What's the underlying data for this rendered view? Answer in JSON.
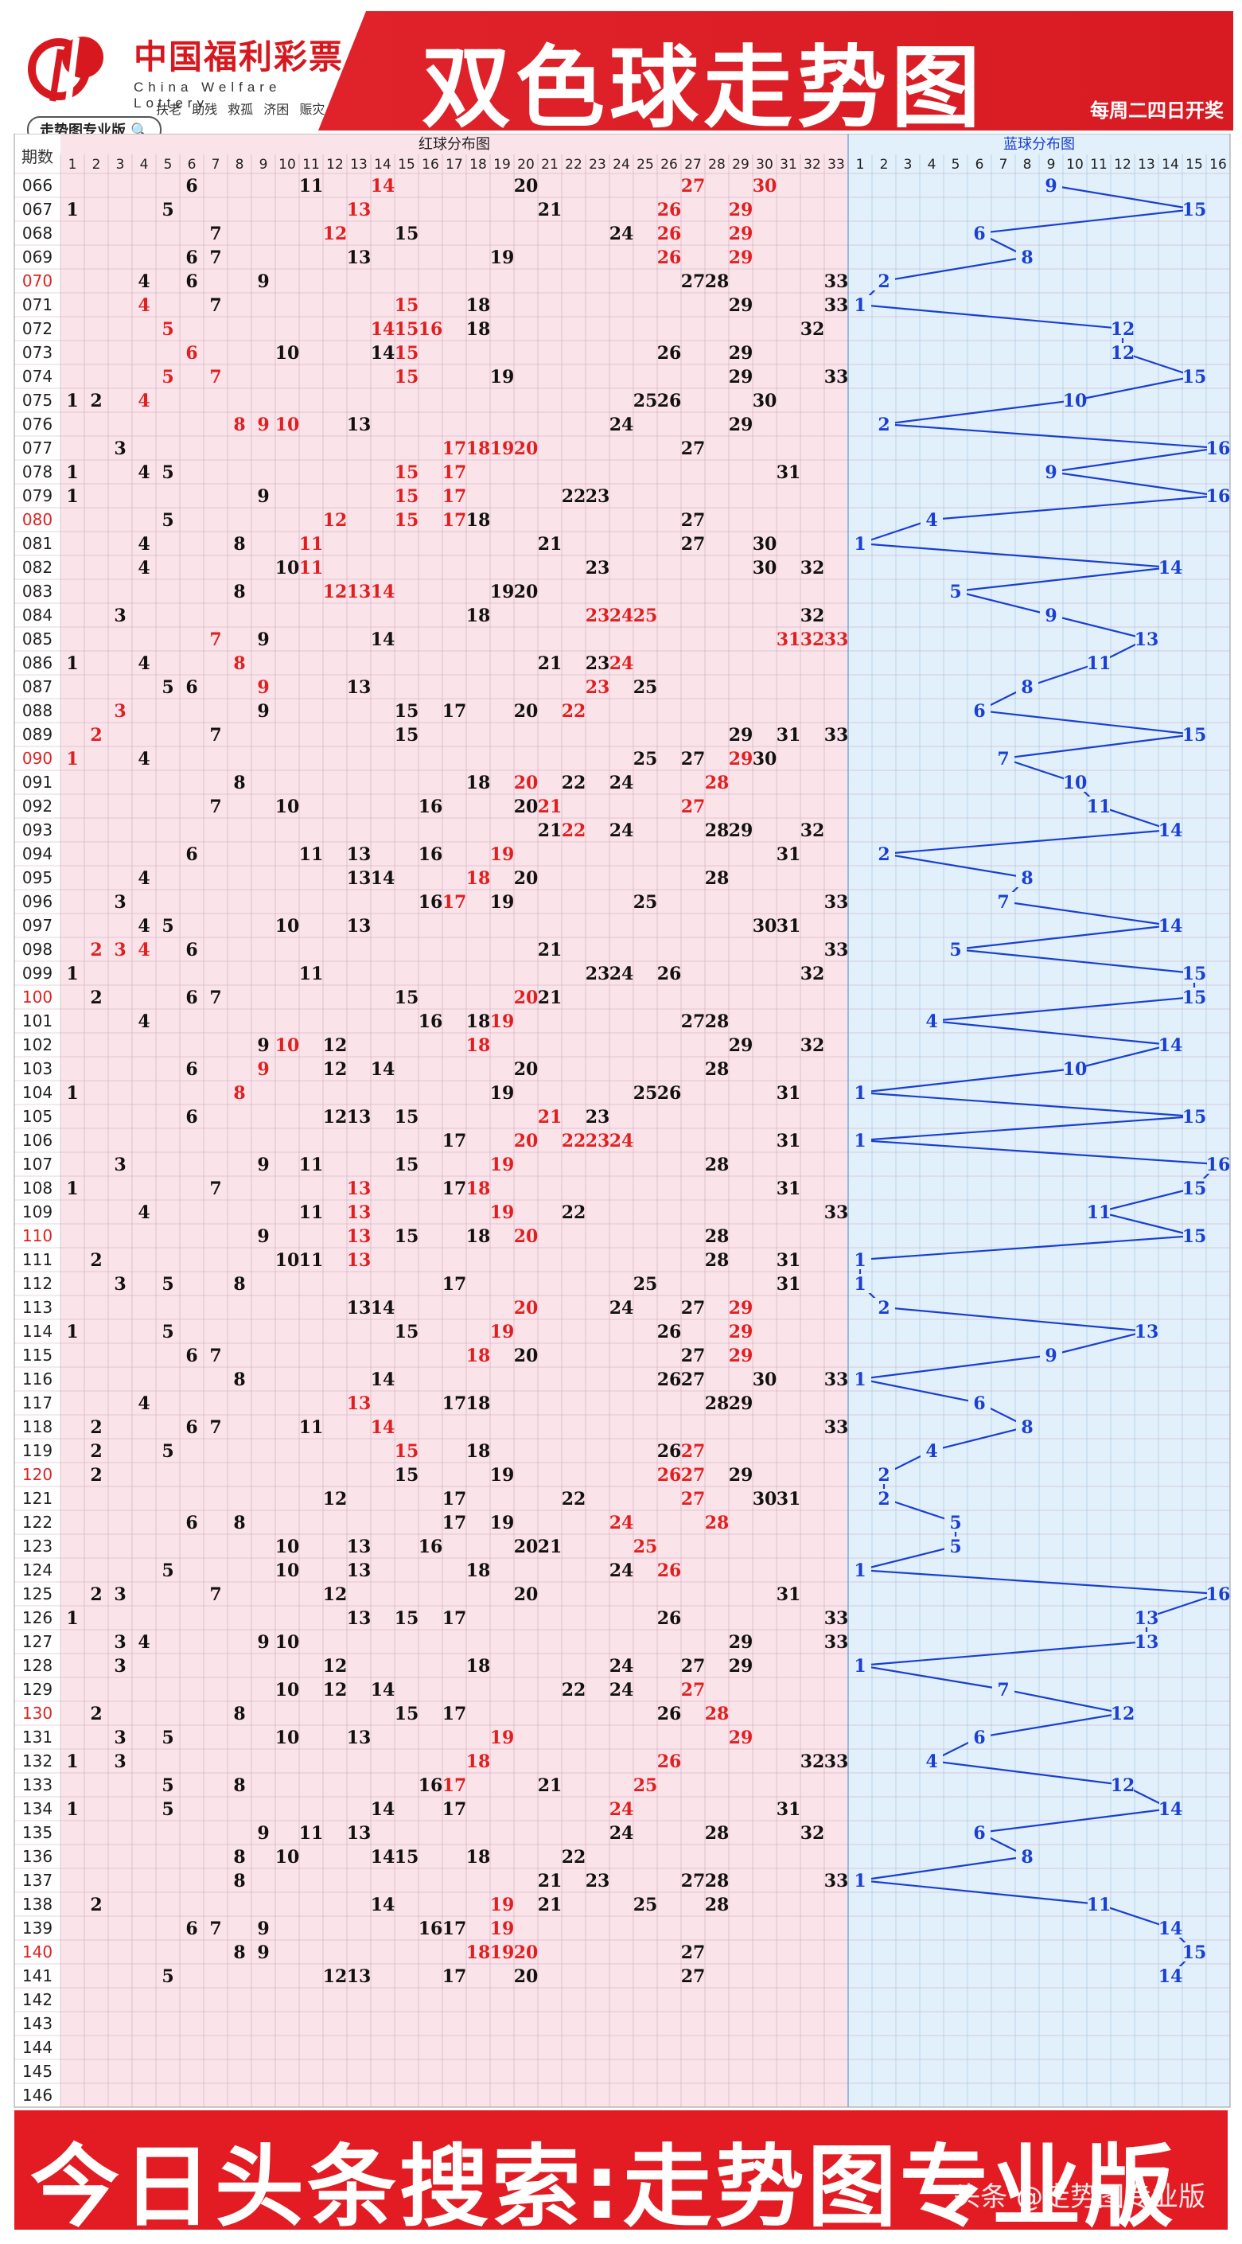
{
  "header": {
    "logo_cn": "中国福利彩票",
    "logo_en": "China Welfare Lottery",
    "logo_tags": "扶老 助残 救孤 济困 赈灾",
    "pro_badge": "走势图专业版",
    "title": "双色球走势图",
    "draw_days": "每周二四日开奖"
  },
  "table": {
    "period_header": "期数",
    "red_section_title": "红球分布图",
    "blue_section_title": "蓝球分布图",
    "red_numbers": [
      1,
      2,
      3,
      4,
      5,
      6,
      7,
      8,
      9,
      10,
      11,
      12,
      13,
      14,
      15,
      16,
      17,
      18,
      19,
      20,
      21,
      22,
      23,
      24,
      25,
      26,
      27,
      28,
      29,
      30,
      31,
      32,
      33
    ],
    "blue_numbers": [
      1,
      2,
      3,
      4,
      5,
      6,
      7,
      8,
      9,
      10,
      11,
      12,
      13,
      14,
      15,
      16
    ],
    "highlight_periods": [
      "070",
      "080",
      "090",
      "100",
      "110",
      "120",
      "130",
      "140"
    ],
    "rows": [
      {
        "p": "066",
        "r": [
          6,
          11,
          14,
          20,
          27,
          30
        ],
        "h": [
          14,
          27,
          30
        ],
        "b": 9
      },
      {
        "p": "067",
        "r": [
          1,
          5,
          13,
          21,
          26,
          29
        ],
        "h": [
          13,
          26,
          29
        ],
        "b": 15
      },
      {
        "p": "068",
        "r": [
          7,
          12,
          15,
          24,
          26,
          29
        ],
        "h": [
          12,
          26,
          29
        ],
        "b": 6
      },
      {
        "p": "069",
        "r": [
          6,
          7,
          13,
          19,
          26,
          29
        ],
        "h": [
          26,
          29
        ],
        "b": 8
      },
      {
        "p": "070",
        "r": [
          4,
          6,
          9,
          27,
          28,
          33
        ],
        "h": [],
        "b": 2
      },
      {
        "p": "071",
        "r": [
          4,
          7,
          15,
          18,
          29,
          33
        ],
        "h": [
          4,
          15
        ],
        "b": 1
      },
      {
        "p": "072",
        "r": [
          5,
          14,
          15,
          16,
          18,
          32
        ],
        "h": [
          5,
          14,
          15,
          16
        ],
        "b": 12
      },
      {
        "p": "073",
        "r": [
          6,
          10,
          14,
          15,
          26,
          29
        ],
        "h": [
          6,
          15
        ],
        "b": 12
      },
      {
        "p": "074",
        "r": [
          5,
          7,
          15,
          19,
          29,
          33
        ],
        "h": [
          5,
          7,
          15
        ],
        "b": 15
      },
      {
        "p": "075",
        "r": [
          1,
          2,
          4,
          25,
          26,
          30
        ],
        "h": [
          4
        ],
        "b": 10
      },
      {
        "p": "076",
        "r": [
          8,
          9,
          10,
          13,
          24,
          29
        ],
        "h": [
          8,
          9,
          10
        ],
        "b": 2
      },
      {
        "p": "077",
        "r": [
          3,
          17,
          18,
          19,
          20,
          27
        ],
        "h": [
          17,
          18,
          19,
          20
        ],
        "b": 16
      },
      {
        "p": "078",
        "r": [
          1,
          4,
          5,
          15,
          17,
          31
        ],
        "h": [
          15,
          17
        ],
        "b": 9
      },
      {
        "p": "079",
        "r": [
          1,
          9,
          15,
          17,
          22,
          23
        ],
        "h": [
          15,
          17
        ],
        "b": 16
      },
      {
        "p": "080",
        "r": [
          5,
          12,
          15,
          17,
          18,
          27
        ],
        "h": [
          12,
          15,
          17
        ],
        "b": 4
      },
      {
        "p": "081",
        "r": [
          4,
          8,
          11,
          21,
          27,
          30
        ],
        "h": [
          11
        ],
        "b": 1
      },
      {
        "p": "082",
        "r": [
          4,
          10,
          11,
          23,
          30,
          32
        ],
        "h": [
          11
        ],
        "b": 14
      },
      {
        "p": "083",
        "r": [
          8,
          12,
          13,
          14,
          19,
          20
        ],
        "h": [
          12,
          13,
          14
        ],
        "b": 5
      },
      {
        "p": "084",
        "r": [
          3,
          18,
          23,
          24,
          25,
          32
        ],
        "h": [
          23,
          24,
          25
        ],
        "b": 9
      },
      {
        "p": "085",
        "r": [
          7,
          9,
          14,
          31,
          32,
          33
        ],
        "h": [
          7,
          31,
          32,
          33
        ],
        "b": 13
      },
      {
        "p": "086",
        "r": [
          1,
          4,
          8,
          21,
          23,
          24
        ],
        "h": [
          8,
          24
        ],
        "b": 11
      },
      {
        "p": "087",
        "r": [
          5,
          6,
          9,
          13,
          23,
          25
        ],
        "h": [
          9,
          23
        ],
        "b": 8
      },
      {
        "p": "088",
        "r": [
          3,
          9,
          15,
          17,
          20,
          22
        ],
        "h": [
          3,
          22
        ],
        "b": 6
      },
      {
        "p": "089",
        "r": [
          2,
          7,
          15,
          29,
          31,
          33
        ],
        "h": [
          2
        ],
        "b": 15
      },
      {
        "p": "090",
        "r": [
          1,
          4,
          25,
          27,
          29,
          30
        ],
        "h": [
          1,
          29
        ],
        "b": 7
      },
      {
        "p": "091",
        "r": [
          8,
          18,
          20,
          22,
          24,
          28
        ],
        "h": [
          20,
          28
        ],
        "b": 10
      },
      {
        "p": "092",
        "r": [
          7,
          10,
          16,
          20,
          21,
          27
        ],
        "h": [
          21,
          27
        ],
        "b": 11
      },
      {
        "p": "093",
        "r": [
          21,
          22,
          24,
          28,
          29,
          32
        ],
        "h": [
          22
        ],
        "b": 14
      },
      {
        "p": "094",
        "r": [
          6,
          11,
          13,
          16,
          19,
          31
        ],
        "h": [
          19
        ],
        "b": 2
      },
      {
        "p": "095",
        "r": [
          4,
          13,
          14,
          18,
          20,
          28
        ],
        "h": [
          18
        ],
        "b": 8
      },
      {
        "p": "096",
        "r": [
          3,
          16,
          17,
          19,
          25,
          33
        ],
        "h": [
          17
        ],
        "b": 7
      },
      {
        "p": "097",
        "r": [
          4,
          5,
          10,
          13,
          30,
          31
        ],
        "h": [],
        "b": 14
      },
      {
        "p": "098",
        "r": [
          2,
          3,
          4,
          6,
          21,
          33
        ],
        "h": [
          2,
          3,
          4
        ],
        "b": 5
      },
      {
        "p": "099",
        "r": [
          1,
          11,
          23,
          24,
          26,
          32
        ],
        "h": [],
        "b": 15
      },
      {
        "p": "100",
        "r": [
          2,
          6,
          7,
          15,
          20,
          21
        ],
        "h": [
          20
        ],
        "b": 15
      },
      {
        "p": "101",
        "r": [
          4,
          16,
          18,
          19,
          27,
          28
        ],
        "h": [
          19
        ],
        "b": 4
      },
      {
        "p": "102",
        "r": [
          9,
          10,
          12,
          18,
          29,
          32
        ],
        "h": [
          10,
          18
        ],
        "b": 14
      },
      {
        "p": "103",
        "r": [
          6,
          9,
          12,
          14,
          20,
          28
        ],
        "h": [
          9
        ],
        "b": 10
      },
      {
        "p": "104",
        "r": [
          1,
          8,
          19,
          25,
          26,
          31
        ],
        "h": [
          8
        ],
        "b": 1
      },
      {
        "p": "105",
        "r": [
          6,
          12,
          13,
          15,
          21,
          23
        ],
        "h": [
          21
        ],
        "b": 15
      },
      {
        "p": "106",
        "r": [
          17,
          20,
          22,
          23,
          24,
          31
        ],
        "h": [
          20,
          22,
          23,
          24
        ],
        "b": 1
      },
      {
        "p": "107",
        "r": [
          3,
          9,
          11,
          15,
          19,
          28
        ],
        "h": [
          19
        ],
        "b": 16
      },
      {
        "p": "108",
        "r": [
          1,
          7,
          13,
          17,
          18,
          31
        ],
        "h": [
          13,
          18
        ],
        "b": 15
      },
      {
        "p": "109",
        "r": [
          4,
          11,
          13,
          19,
          22,
          33
        ],
        "h": [
          13,
          19
        ],
        "b": 11
      },
      {
        "p": "110",
        "r": [
          9,
          13,
          15,
          18,
          20,
          28
        ],
        "h": [
          13,
          20
        ],
        "b": 15
      },
      {
        "p": "111",
        "r": [
          2,
          10,
          11,
          13,
          28,
          31
        ],
        "h": [
          13
        ],
        "b": 1
      },
      {
        "p": "112",
        "r": [
          3,
          5,
          8,
          17,
          25,
          31
        ],
        "h": [],
        "b": 1
      },
      {
        "p": "113",
        "r": [
          13,
          14,
          20,
          24,
          27,
          29
        ],
        "h": [
          20,
          29
        ],
        "b": 2
      },
      {
        "p": "114",
        "r": [
          1,
          5,
          15,
          19,
          26,
          29
        ],
        "h": [
          19,
          29
        ],
        "b": 13
      },
      {
        "p": "115",
        "r": [
          6,
          7,
          18,
          20,
          27,
          29
        ],
        "h": [
          18,
          29
        ],
        "b": 9
      },
      {
        "p": "116",
        "r": [
          8,
          14,
          26,
          27,
          30,
          33
        ],
        "h": [],
        "b": 1
      },
      {
        "p": "117",
        "r": [
          4,
          13,
          17,
          18,
          28,
          29
        ],
        "h": [
          13
        ],
        "b": 6
      },
      {
        "p": "118",
        "r": [
          2,
          6,
          7,
          11,
          14,
          33
        ],
        "h": [
          14
        ],
        "b": 8
      },
      {
        "p": "119",
        "r": [
          2,
          5,
          15,
          18,
          26,
          27
        ],
        "h": [
          15,
          27
        ],
        "b": 4
      },
      {
        "p": "120",
        "r": [
          2,
          15,
          19,
          26,
          27,
          29
        ],
        "h": [
          26,
          27
        ],
        "b": 2
      },
      {
        "p": "121",
        "r": [
          12,
          17,
          22,
          27,
          30,
          31
        ],
        "h": [
          27
        ],
        "b": 2
      },
      {
        "p": "122",
        "r": [
          6,
          8,
          17,
          19,
          24,
          28
        ],
        "h": [
          24,
          28
        ],
        "b": 5
      },
      {
        "p": "123",
        "r": [
          10,
          13,
          16,
          20,
          21,
          25
        ],
        "h": [
          25
        ],
        "b": 5
      },
      {
        "p": "124",
        "r": [
          5,
          10,
          13,
          18,
          24,
          26
        ],
        "h": [
          26
        ],
        "b": 1
      },
      {
        "p": "125",
        "r": [
          2,
          3,
          7,
          12,
          20,
          31
        ],
        "h": [],
        "b": 16
      },
      {
        "p": "126",
        "r": [
          1,
          13,
          15,
          17,
          26,
          33
        ],
        "h": [],
        "b": 13
      },
      {
        "p": "127",
        "r": [
          3,
          4,
          9,
          10,
          29,
          33
        ],
        "h": [],
        "b": 13
      },
      {
        "p": "128",
        "r": [
          3,
          12,
          18,
          24,
          27,
          29
        ],
        "h": [],
        "b": 1
      },
      {
        "p": "129",
        "r": [
          10,
          12,
          14,
          22,
          24,
          27
        ],
        "h": [
          27
        ],
        "b": 7
      },
      {
        "p": "130",
        "r": [
          2,
          8,
          15,
          17,
          26,
          28
        ],
        "h": [
          28
        ],
        "b": 12
      },
      {
        "p": "131",
        "r": [
          3,
          5,
          10,
          13,
          19,
          29
        ],
        "h": [
          19,
          29
        ],
        "b": 6
      },
      {
        "p": "132",
        "r": [
          1,
          3,
          18,
          26,
          32,
          33
        ],
        "h": [
          18,
          26
        ],
        "b": 4
      },
      {
        "p": "133",
        "r": [
          5,
          8,
          16,
          17,
          21,
          25
        ],
        "h": [
          17,
          25
        ],
        "b": 12
      },
      {
        "p": "134",
        "r": [
          1,
          5,
          14,
          17,
          24,
          31
        ],
        "h": [
          24
        ],
        "b": 14
      },
      {
        "p": "135",
        "r": [
          9,
          11,
          13,
          24,
          28,
          32
        ],
        "h": [],
        "b": 6
      },
      {
        "p": "136",
        "r": [
          8,
          10,
          14,
          15,
          18,
          22
        ],
        "h": [],
        "b": 8
      },
      {
        "p": "137",
        "r": [
          8,
          21,
          23,
          27,
          28,
          33
        ],
        "h": [],
        "b": 1
      },
      {
        "p": "138",
        "r": [
          2,
          14,
          19,
          21,
          25,
          28
        ],
        "h": [
          19
        ],
        "b": 11
      },
      {
        "p": "139",
        "r": [
          6,
          7,
          9,
          16,
          17,
          19
        ],
        "h": [
          19
        ],
        "b": 14
      },
      {
        "p": "140",
        "r": [
          8,
          9,
          18,
          19,
          20,
          27
        ],
        "h": [
          18,
          19,
          20
        ],
        "b": 15
      },
      {
        "p": "141",
        "r": [
          5,
          12,
          13,
          17,
          20,
          27
        ],
        "h": [],
        "b": 14
      },
      {
        "p": "142",
        "r": [],
        "h": [],
        "b": null
      },
      {
        "p": "143",
        "r": [],
        "h": [],
        "b": null
      },
      {
        "p": "144",
        "r": [],
        "h": [],
        "b": null
      },
      {
        "p": "145",
        "r": [],
        "h": [],
        "b": null
      },
      {
        "p": "146",
        "r": [],
        "h": [],
        "b": null
      }
    ]
  },
  "footer": {
    "search_text": "今日头条搜索:走势图专业版",
    "watermark": "头条 @走势图专业版"
  },
  "colors": {
    "red_bg": "#fbe3ea",
    "blue_bg": "#e1f0fb",
    "grid": "#c9a9b8",
    "hot": "#e02020",
    "normal": "#111111",
    "blue_ball": "#1a3fd1",
    "banner": "#e0232a"
  }
}
